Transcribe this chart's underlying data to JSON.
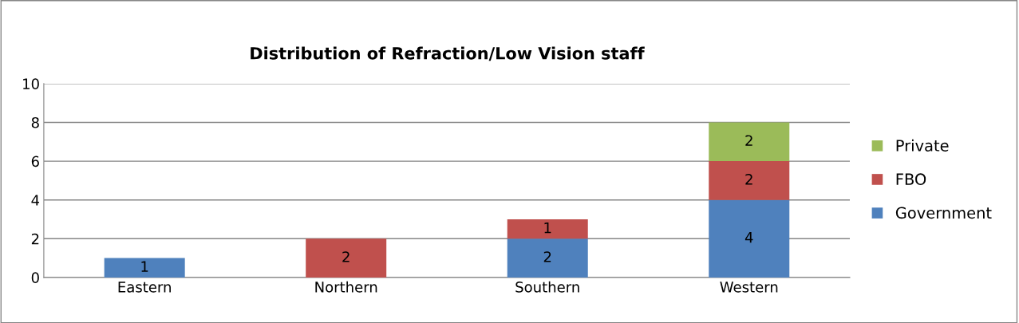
{
  "chart_data": {
    "type": "bar",
    "title": "Distribution of Refraction/Low Vision staff",
    "categories": [
      "Eastern",
      "Northern",
      "Southern",
      "Western"
    ],
    "stacked": true,
    "series": [
      {
        "name": "Government",
        "color": "#4f81bd",
        "values": [
          1,
          0,
          2,
          4
        ],
        "value_labels": [
          "1",
          null,
          "2",
          "4"
        ]
      },
      {
        "name": "FBO",
        "color": "#c0504d",
        "values": [
          0,
          2,
          1,
          2
        ],
        "value_labels": [
          null,
          "2",
          "1",
          "2"
        ]
      },
      {
        "name": "Private",
        "color": "#9bbb59",
        "values": [
          0,
          0,
          0,
          2
        ],
        "value_labels": [
          null,
          null,
          null,
          "2"
        ]
      }
    ],
    "ylim": [
      0,
      10
    ],
    "yticks": [
      0,
      2,
      4,
      6,
      8,
      10
    ],
    "grid": "y",
    "legend": "right"
  }
}
